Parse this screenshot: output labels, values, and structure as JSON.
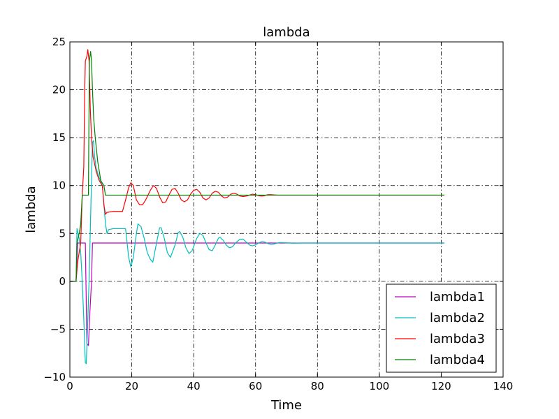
{
  "chart_data": {
    "type": "line",
    "title": "lambda",
    "xlabel": "Time",
    "ylabel": "lambda",
    "xlim": [
      0,
      140
    ],
    "ylim": [
      -10,
      25
    ],
    "xticks": [
      0,
      20,
      40,
      60,
      80,
      100,
      120,
      140
    ],
    "yticks": [
      -10,
      -5,
      0,
      5,
      10,
      15,
      20,
      25
    ],
    "xtick_labels": [
      "0",
      "20",
      "40",
      "60",
      "80",
      "100",
      "120",
      "140"
    ],
    "ytick_labels": [
      "−10",
      "−5",
      "0",
      "5",
      "10",
      "15",
      "20",
      "25"
    ],
    "grid": true,
    "legend_position": "lower-right",
    "series": [
      {
        "name": "lambda1",
        "color": "#bf00bf",
        "points": [
          [
            0,
            0
          ],
          [
            1.5,
            0
          ],
          [
            2,
            0
          ],
          [
            2.5,
            4
          ],
          [
            4,
            4
          ],
          [
            5,
            4
          ],
          [
            5.5,
            -6.5
          ],
          [
            6,
            -6.7
          ],
          [
            6.5,
            -3
          ],
          [
            7,
            0
          ],
          [
            7.3,
            4
          ],
          [
            121,
            4
          ]
        ]
      },
      {
        "name": "lambda2",
        "color": "#00bfbf",
        "points": [
          [
            0,
            0
          ],
          [
            1.5,
            0
          ],
          [
            2,
            0
          ],
          [
            2.3,
            5.5
          ],
          [
            3,
            4.5
          ],
          [
            3.5,
            3
          ],
          [
            4,
            0
          ],
          [
            4.5,
            -4
          ],
          [
            5,
            -8.5
          ],
          [
            5.3,
            -8.6
          ],
          [
            5.7,
            -5
          ],
          [
            6.2,
            0
          ],
          [
            6.8,
            8
          ],
          [
            7.3,
            14.5
          ],
          [
            7.6,
            14.7
          ],
          [
            8,
            13
          ],
          [
            8.5,
            11.8
          ],
          [
            9.5,
            10.8
          ],
          [
            10.5,
            10
          ],
          [
            11,
            8
          ],
          [
            11.5,
            6
          ],
          [
            12,
            5
          ],
          [
            12.5,
            5.4
          ],
          [
            14,
            5.5
          ],
          [
            16,
            5.5
          ],
          [
            18,
            5.5
          ],
          [
            19,
            2.5
          ],
          [
            19.7,
            1.5
          ],
          [
            20.5,
            2.5
          ],
          [
            21.5,
            5
          ],
          [
            22,
            6
          ],
          [
            23,
            5.7
          ],
          [
            24,
            4.5
          ],
          [
            25,
            3
          ],
          [
            26,
            2.3
          ],
          [
            26.8,
            2
          ],
          [
            28,
            4
          ],
          [
            29,
            5.6
          ],
          [
            29.5,
            5.6
          ],
          [
            30.5,
            4.5
          ],
          [
            31.5,
            3
          ],
          [
            32.5,
            2.5
          ],
          [
            34,
            3.8
          ],
          [
            35,
            5.1
          ],
          [
            35.5,
            5.2
          ],
          [
            36.5,
            4.6
          ],
          [
            37.5,
            3.5
          ],
          [
            38.5,
            2.9
          ],
          [
            39.5,
            3.2
          ],
          [
            41,
            4.5
          ],
          [
            42,
            5
          ],
          [
            43,
            4.8
          ],
          [
            44,
            4
          ],
          [
            45,
            3.3
          ],
          [
            46,
            3.2
          ],
          [
            47,
            3.8
          ],
          [
            48,
            4.5
          ],
          [
            48.5,
            4.6
          ],
          [
            49.5,
            4.3
          ],
          [
            50.5,
            3.8
          ],
          [
            51.5,
            3.5
          ],
          [
            52.5,
            3.6
          ],
          [
            53.5,
            4
          ],
          [
            55,
            4.4
          ],
          [
            56,
            4.4
          ],
          [
            57,
            4.1
          ],
          [
            58,
            3.8
          ],
          [
            59,
            3.7
          ],
          [
            60,
            3.8
          ],
          [
            61,
            4
          ],
          [
            62,
            4.15
          ],
          [
            63,
            4.1
          ],
          [
            64,
            3.95
          ],
          [
            65,
            3.85
          ],
          [
            66,
            3.9
          ],
          [
            67,
            4
          ],
          [
            68,
            4.05
          ],
          [
            70,
            4.02
          ],
          [
            72,
            3.98
          ],
          [
            75,
            4
          ],
          [
            121,
            4
          ]
        ]
      },
      {
        "name": "lambda3",
        "color": "#ff0000",
        "points": [
          [
            0,
            0
          ],
          [
            1.5,
            0
          ],
          [
            2,
            0
          ],
          [
            2.5,
            2
          ],
          [
            3,
            3
          ],
          [
            3.5,
            4
          ],
          [
            4,
            9
          ],
          [
            4.5,
            12
          ],
          [
            4.8,
            20
          ],
          [
            5,
            23
          ],
          [
            5.5,
            23.5
          ],
          [
            5.8,
            24.2
          ],
          [
            6.2,
            23
          ],
          [
            6.6,
            18
          ],
          [
            7,
            15
          ],
          [
            7.5,
            13
          ],
          [
            8.5,
            11.5
          ],
          [
            9.5,
            10.5
          ],
          [
            10.5,
            10
          ],
          [
            11,
            8
          ],
          [
            11.5,
            7
          ],
          [
            12,
            7.2
          ],
          [
            14,
            7.3
          ],
          [
            16,
            7.3
          ],
          [
            17,
            7.3
          ],
          [
            18,
            8.5
          ],
          [
            19,
            9.8
          ],
          [
            19.7,
            10.3
          ],
          [
            20.5,
            10
          ],
          [
            21.5,
            8.5
          ],
          [
            22.5,
            8
          ],
          [
            23.5,
            8
          ],
          [
            24.5,
            8.5
          ],
          [
            26,
            9.5
          ],
          [
            27,
            10
          ],
          [
            28,
            9.7
          ],
          [
            29,
            8.8
          ],
          [
            30,
            8.2
          ],
          [
            31,
            8.3
          ],
          [
            32,
            9
          ],
          [
            33,
            9.6
          ],
          [
            34,
            9.7
          ],
          [
            35,
            9.2
          ],
          [
            36,
            8.5
          ],
          [
            37,
            8.3
          ],
          [
            38,
            8.5
          ],
          [
            39,
            9.1
          ],
          [
            40,
            9.5
          ],
          [
            41,
            9.6
          ],
          [
            42,
            9.3
          ],
          [
            43,
            8.7
          ],
          [
            44,
            8.5
          ],
          [
            45,
            8.7
          ],
          [
            46,
            9.2
          ],
          [
            47,
            9.4
          ],
          [
            48,
            9.3
          ],
          [
            49,
            8.9
          ],
          [
            50,
            8.7
          ],
          [
            51,
            8.8
          ],
          [
            52,
            9.1
          ],
          [
            53,
            9.2
          ],
          [
            54,
            9.1
          ],
          [
            55,
            8.9
          ],
          [
            56,
            8.85
          ],
          [
            57,
            8.9
          ],
          [
            58,
            9
          ],
          [
            59,
            9.1
          ],
          [
            60,
            9.05
          ],
          [
            61,
            8.95
          ],
          [
            62,
            8.9
          ],
          [
            63,
            8.95
          ],
          [
            64,
            9.05
          ],
          [
            65,
            9.05
          ],
          [
            67,
            9
          ],
          [
            70,
            9
          ],
          [
            121,
            9
          ]
        ]
      },
      {
        "name": "lambda4",
        "color": "#007f00",
        "points": [
          [
            0,
            0
          ],
          [
            1.5,
            0
          ],
          [
            2,
            0
          ],
          [
            2.3,
            4
          ],
          [
            3,
            5
          ],
          [
            3.5,
            6
          ],
          [
            4,
            9
          ],
          [
            6,
            9
          ],
          [
            6.3,
            23
          ],
          [
            6.7,
            24
          ],
          [
            7,
            23
          ],
          [
            7.3,
            20
          ],
          [
            7.7,
            17
          ],
          [
            8.2,
            15
          ],
          [
            9,
            12.5
          ],
          [
            10,
            10.5
          ],
          [
            11,
            10
          ],
          [
            11.5,
            9
          ],
          [
            121,
            9
          ]
        ]
      }
    ]
  }
}
